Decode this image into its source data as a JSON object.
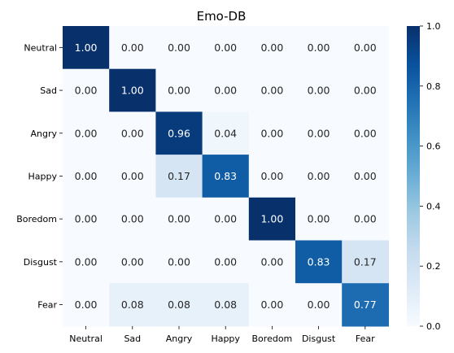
{
  "chart_data": {
    "type": "heatmap",
    "title": "Emo-DB",
    "xlabel": "",
    "ylabel": "",
    "row_labels": [
      "Neutral",
      "Sad",
      "Angry",
      "Happy",
      "Boredom",
      "Disgust",
      "Fear"
    ],
    "col_labels": [
      "Neutral",
      "Sad",
      "Angry",
      "Happy",
      "Boredom",
      "Disgust",
      "Fear"
    ],
    "values": [
      [
        1.0,
        0.0,
        0.0,
        0.0,
        0.0,
        0.0,
        0.0
      ],
      [
        0.0,
        1.0,
        0.0,
        0.0,
        0.0,
        0.0,
        0.0
      ],
      [
        0.0,
        0.0,
        0.96,
        0.04,
        0.0,
        0.0,
        0.0
      ],
      [
        0.0,
        0.0,
        0.17,
        0.83,
        0.0,
        0.0,
        0.0
      ],
      [
        0.0,
        0.0,
        0.0,
        0.0,
        1.0,
        0.0,
        0.0
      ],
      [
        0.0,
        0.0,
        0.0,
        0.0,
        0.0,
        0.83,
        0.17
      ],
      [
        0.0,
        0.08,
        0.08,
        0.08,
        0.0,
        0.0,
        0.77
      ]
    ],
    "value_format": "2 decimals",
    "colormap": "Blues",
    "colorbar": {
      "range": [
        0.0,
        1.0
      ],
      "ticks": [
        0.0,
        0.2,
        0.4,
        0.6,
        0.8,
        1.0
      ],
      "tick_labels": [
        "0.0",
        "0.2",
        "0.4",
        "0.6",
        "0.8",
        "1.0"
      ]
    },
    "grid": false
  }
}
